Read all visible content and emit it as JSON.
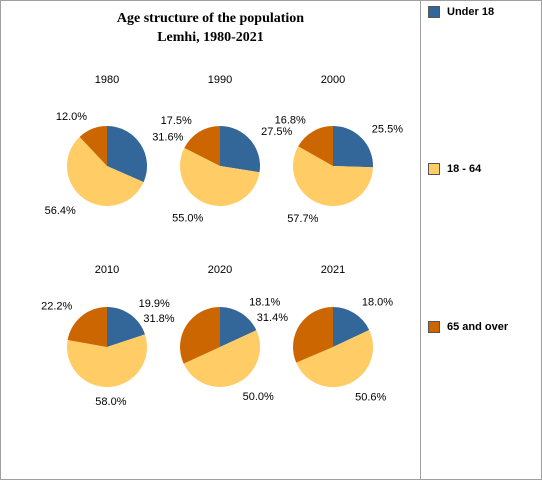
{
  "chart_data": {
    "type": "pie",
    "title": "Age structure of the population",
    "subtitle": "Lemhi, 1980-2021",
    "legend_position": "right",
    "series": [
      {
        "name": "Under 18",
        "color": "#336699"
      },
      {
        "name": "18 - 64",
        "color": "#ffcc66"
      },
      {
        "name": "65 and over",
        "color": "#cc6600"
      }
    ],
    "pies": [
      {
        "year": "1980",
        "values": [
          31.6,
          56.4,
          12.0
        ],
        "labels": [
          "31.6%",
          "56.4%",
          "12.0%"
        ]
      },
      {
        "year": "1990",
        "values": [
          27.5,
          55.0,
          17.5
        ],
        "labels": [
          "27.5%",
          "55.0%",
          "17.5%"
        ]
      },
      {
        "year": "2000",
        "values": [
          25.5,
          57.7,
          16.8
        ],
        "labels": [
          "25.5%",
          "57.7%",
          "16.8%"
        ]
      },
      {
        "year": "2010",
        "values": [
          19.9,
          58.0,
          22.2
        ],
        "labels": [
          "19.9%",
          "58.0%",
          "22.2%"
        ]
      },
      {
        "year": "2020",
        "values": [
          18.1,
          50.0,
          31.8
        ],
        "labels": [
          "18.1%",
          "50.0%",
          "31.8%"
        ]
      },
      {
        "year": "2021",
        "values": [
          18.0,
          50.6,
          31.4
        ],
        "labels": [
          "18.0%",
          "50.6%",
          "31.4%"
        ]
      }
    ]
  }
}
